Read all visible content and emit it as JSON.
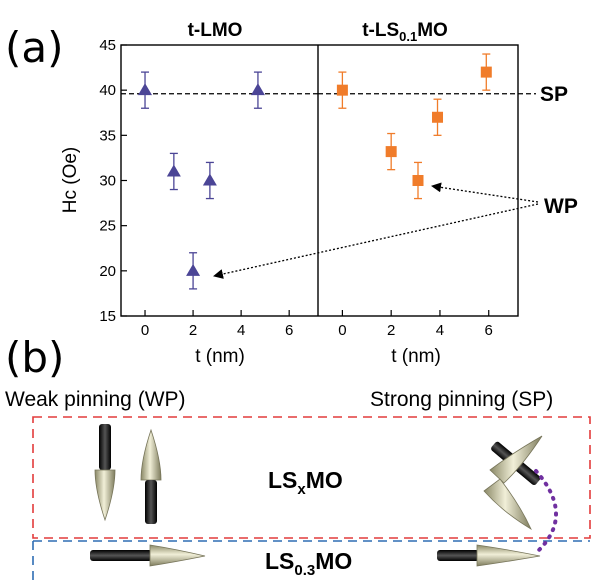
{
  "panel_labels": {
    "a": "(a)",
    "b": "(b)"
  },
  "colors": {
    "lmo": "#4b4596",
    "ls01mo": "#f07c2a",
    "box_red": "#e23b3b",
    "box_blue": "#2e6db4",
    "dotted_arc": "#7030a0",
    "cone": "#d8d6b4",
    "rod": "#1a1a1a"
  },
  "annotations": {
    "sp": "SP",
    "wp": "WP"
  },
  "chart_data": [
    {
      "type": "scatter",
      "title": "t-LMO",
      "xlabel": "t (nm)",
      "ylabel": "Hc (Oe)",
      "xlim": [
        -1,
        7.2
      ],
      "ylim": [
        15,
        45
      ],
      "x_ticks": [
        "0",
        "2",
        "4",
        "6"
      ],
      "y_ticks": [
        "15",
        "20",
        "25",
        "30",
        "35",
        "40",
        "45"
      ],
      "marker": "triangle",
      "reference_line": 39.6,
      "series": [
        {
          "x": [
            0,
            1.2,
            2,
            2.7,
            4.7
          ],
          "y": [
            40,
            31,
            20,
            30,
            40
          ],
          "err": [
            2,
            2,
            2,
            2,
            2
          ]
        }
      ]
    },
    {
      "type": "scatter",
      "title": "t-LS",
      "title_sub": "0.1",
      "title_end": "MO",
      "xlabel": "t (nm)",
      "xlim": [
        -1,
        7.2
      ],
      "ylim": [
        15,
        45
      ],
      "x_ticks": [
        "0",
        "2",
        "4",
        "6"
      ],
      "marker": "square",
      "reference_line": 39.6,
      "series": [
        {
          "x": [
            0,
            2,
            3.1,
            3.9,
            5.9
          ],
          "y": [
            40,
            33.2,
            30,
            37,
            42
          ],
          "err": [
            2,
            2,
            2,
            2,
            2
          ]
        }
      ]
    }
  ],
  "panel_b": {
    "left_caption": "Weak pinning (WP)",
    "right_caption": "Strong pinning (SP)",
    "upper_layer": {
      "text": "LS",
      "sub": "x",
      "end": "MO"
    },
    "lower_layer": {
      "text": "LS",
      "sub": "0.3",
      "end": "MO"
    }
  }
}
